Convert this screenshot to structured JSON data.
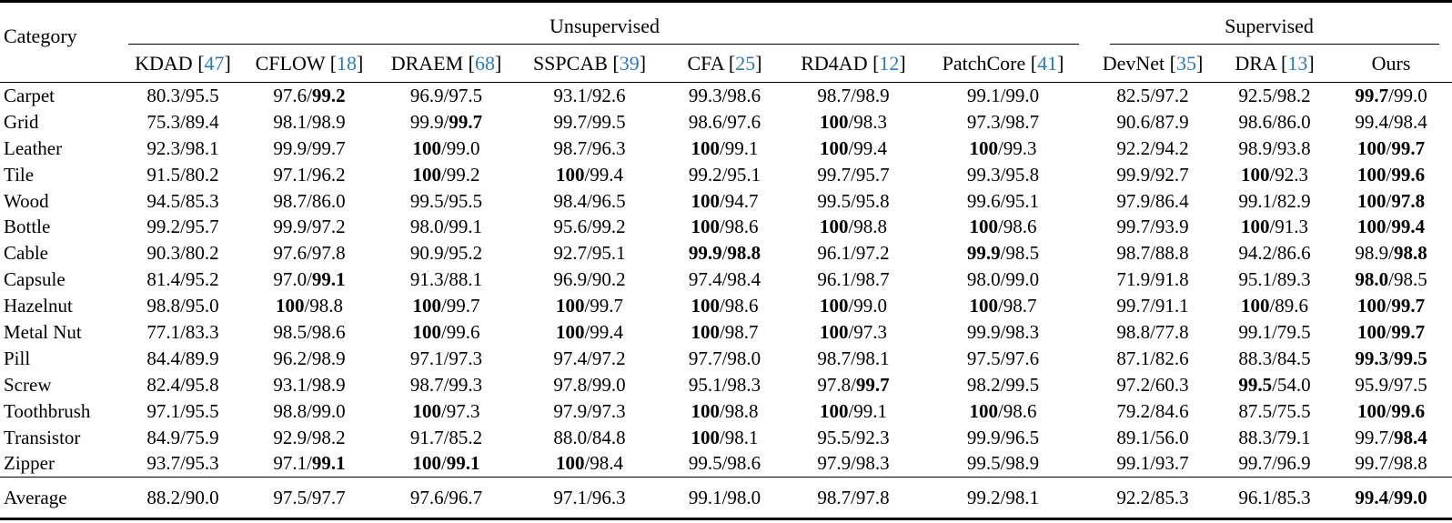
{
  "colors": {
    "citation_blue": "#2b7bba",
    "text": "#000000",
    "background": "#ffffff",
    "rule": "#000000"
  },
  "table": {
    "corner_header": "Category",
    "groups": [
      {
        "label": "Unsupervised",
        "span": 7
      },
      {
        "label": "Supervised",
        "span": 3
      }
    ],
    "columns": [
      {
        "name": "KDAD",
        "cite": "47"
      },
      {
        "name": "CFLOW",
        "cite": "18"
      },
      {
        "name": "DRAEM",
        "cite": "68"
      },
      {
        "name": "SSPCAB",
        "cite": "39"
      },
      {
        "name": "CFA",
        "cite": "25"
      },
      {
        "name": "RD4AD",
        "cite": "12"
      },
      {
        "name": "PatchCore",
        "cite": "41"
      },
      {
        "name": "DevNet",
        "cite": "35"
      },
      {
        "name": "DRA",
        "cite": "13"
      },
      {
        "name": "Ours",
        "cite": null
      }
    ],
    "rows": [
      {
        "category": "Carpet",
        "cells": [
          "80.3/95.5",
          "97.6/*99.2*",
          "96.9/97.5",
          "93.1/92.6",
          "99.3/98.6",
          "98.7/98.9",
          "99.1/99.0",
          "82.5/97.2",
          "92.5/98.2",
          "*99.7*/99.0"
        ]
      },
      {
        "category": "Grid",
        "cells": [
          "75.3/89.4",
          "98.1/98.9",
          "99.9/*99.7*",
          "99.7/99.5",
          "98.6/97.6",
          "*100*/98.3",
          "97.3/98.7",
          "90.6/87.9",
          "98.6/86.0",
          "99.4/98.4"
        ]
      },
      {
        "category": "Leather",
        "cells": [
          "92.3/98.1",
          "99.9/99.7",
          "*100*/99.0",
          "98.7/96.3",
          "*100*/99.1",
          "*100*/99.4",
          "*100*/99.3",
          "92.2/94.2",
          "98.9/93.8",
          "*100*/*99.7*"
        ]
      },
      {
        "category": "Tile",
        "cells": [
          "91.5/80.2",
          "97.1/96.2",
          "*100*/99.2",
          "*100*/99.4",
          "99.2/95.1",
          "99.7/95.7",
          "99.3/95.8",
          "99.9/92.7",
          "*100*/92.3",
          "*100*/*99.6*"
        ]
      },
      {
        "category": "Wood",
        "cells": [
          "94.5/85.3",
          "98.7/86.0",
          "99.5/95.5",
          "98.4/96.5",
          "*100*/94.7",
          "99.5/95.8",
          "99.6/95.1",
          "97.9/86.4",
          "99.1/82.9",
          "*100*/*97.8*"
        ]
      },
      {
        "category": "Bottle",
        "cells": [
          "99.2/95.7",
          "99.9/97.2",
          "98.0/99.1",
          "95.6/99.2",
          "*100*/98.6",
          "*100*/98.8",
          "*100*/98.6",
          "99.7/93.9",
          "*100*/91.3",
          "*100*/*99.4*"
        ]
      },
      {
        "category": "Cable",
        "cells": [
          "90.3/80.2",
          "97.6/97.8",
          "90.9/95.2",
          "92.7/95.1",
          "*99.9*/*98.8*",
          "96.1/97.2",
          "*99.9*/98.5",
          "98.7/88.8",
          "94.2/86.6",
          "98.9/*98.8*"
        ]
      },
      {
        "category": "Capsule",
        "cells": [
          "81.4/95.2",
          "97.0/*99.1*",
          "91.3/88.1",
          "96.9/90.2",
          "97.4/98.4",
          "96.1/98.7",
          "98.0/99.0",
          "71.9/91.8",
          "95.1/89.3",
          "*98.0*/98.5"
        ]
      },
      {
        "category": "Hazelnut",
        "cells": [
          "98.8/95.0",
          "*100*/98.8",
          "*100*/99.7",
          "*100*/99.7",
          "*100*/98.6",
          "*100*/99.0",
          "*100*/98.7",
          "99.7/91.1",
          "*100*/89.6",
          "*100*/*99.7*"
        ]
      },
      {
        "category": "Metal Nut",
        "cells": [
          "77.1/83.3",
          "98.5/98.6",
          "*100*/99.6",
          "*100*/99.4",
          "*100*/98.7",
          "*100*/97.3",
          "99.9/98.3",
          "98.8/77.8",
          "99.1/79.5",
          "*100*/*99.7*"
        ]
      },
      {
        "category": "Pill",
        "cells": [
          "84.4/89.9",
          "96.2/98.9",
          "97.1/97.3",
          "97.4/97.2",
          "97.7/98.0",
          "98.7/98.1",
          "97.5/97.6",
          "87.1/82.6",
          "88.3/84.5",
          "*99.3*/*99.5*"
        ]
      },
      {
        "category": "Screw",
        "cells": [
          "82.4/95.8",
          "93.1/98.9",
          "98.7/99.3",
          "97.8/99.0",
          "95.1/98.3",
          "97.8/*99.7*",
          "98.2/99.5",
          "97.2/60.3",
          "*99.5*/54.0",
          "95.9/97.5"
        ]
      },
      {
        "category": "Toothbrush",
        "cells": [
          "97.1/95.5",
          "98.8/99.0",
          "*100*/97.3",
          "97.9/97.3",
          "*100*/98.8",
          "*100*/99.1",
          "*100*/98.6",
          "79.2/84.6",
          "87.5/75.5",
          "*100*/*99.6*"
        ]
      },
      {
        "category": "Transistor",
        "cells": [
          "84.9/75.9",
          "92.9/98.2",
          "91.7/85.2",
          "88.0/84.8",
          "*100*/98.1",
          "95.5/92.3",
          "99.9/96.5",
          "89.1/56.0",
          "88.3/79.1",
          "99.7/*98.4*"
        ]
      },
      {
        "category": "Zipper",
        "cells": [
          "93.7/95.3",
          "97.1/*99.1*",
          "*100*/*99.1*",
          "*100*/98.4",
          "99.5/98.6",
          "97.9/98.3",
          "99.5/98.9",
          "99.1/93.7",
          "99.7/96.9",
          "99.7/98.8"
        ]
      }
    ],
    "average_row": {
      "category": "Average",
      "cells": [
        "88.2/90.0",
        "97.5/97.7",
        "97.6/96.7",
        "97.1/96.3",
        "99.1/98.0",
        "98.7/97.8",
        "99.2/98.1",
        "92.2/85.3",
        "96.1/85.3",
        "*99.4*/*99.0*"
      ]
    }
  }
}
